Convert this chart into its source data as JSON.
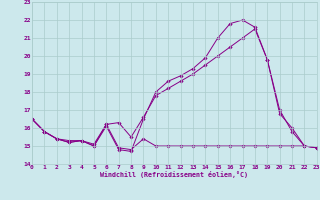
{
  "xlabel": "Windchill (Refroidissement éolien,°C)",
  "background_color": "#cce8ec",
  "grid_color": "#aacccc",
  "line_color": "#880088",
  "xmin": 0,
  "xmax": 23,
  "ymin": 14,
  "ymax": 23,
  "line1_x": [
    0,
    1,
    2,
    3,
    4,
    5,
    6,
    7,
    8,
    9,
    10,
    11,
    12,
    13,
    14,
    15,
    16,
    17,
    18,
    19,
    20,
    21,
    22,
    23
  ],
  "line1_y": [
    16.5,
    15.8,
    15.4,
    15.2,
    15.3,
    15.0,
    16.1,
    14.8,
    14.7,
    16.5,
    18.0,
    18.6,
    18.9,
    19.3,
    19.9,
    21.0,
    21.8,
    22.0,
    21.6,
    19.8,
    17.0,
    15.8,
    15.0,
    14.9
  ],
  "line2_x": [
    0,
    1,
    2,
    3,
    4,
    5,
    6,
    7,
    8,
    9,
    10,
    11,
    12,
    13,
    14,
    15,
    16,
    17,
    18,
    19,
    20,
    21,
    22,
    23
  ],
  "line2_y": [
    16.5,
    15.8,
    15.4,
    15.3,
    15.3,
    15.1,
    16.2,
    16.3,
    15.5,
    16.6,
    17.8,
    18.2,
    18.6,
    19.0,
    19.5,
    20.0,
    20.5,
    21.0,
    21.5,
    19.8,
    16.8,
    16.0,
    15.0,
    14.9
  ],
  "line3_x": [
    0,
    1,
    2,
    3,
    4,
    5,
    6,
    7,
    8,
    9,
    10,
    11,
    12,
    13,
    14,
    15,
    16,
    17,
    18,
    19,
    20,
    21,
    22,
    23
  ],
  "line3_y": [
    16.5,
    15.8,
    15.4,
    15.2,
    15.3,
    15.0,
    16.2,
    14.9,
    14.8,
    15.4,
    15.0,
    15.0,
    15.0,
    15.0,
    15.0,
    15.0,
    15.0,
    15.0,
    15.0,
    15.0,
    15.0,
    15.0,
    15.0,
    14.9
  ],
  "xtick_labels": [
    "0",
    "1",
    "2",
    "3",
    "4",
    "5",
    "6",
    "7",
    "8",
    "9",
    "10",
    "11",
    "12",
    "13",
    "14",
    "15",
    "16",
    "17",
    "18",
    "19",
    "20",
    "21",
    "22",
    "23"
  ],
  "ytick_labels": [
    "14",
    "15",
    "16",
    "17",
    "18",
    "19",
    "20",
    "21",
    "22",
    "23"
  ],
  "fig_width": 3.2,
  "fig_height": 2.0,
  "dpi": 100
}
